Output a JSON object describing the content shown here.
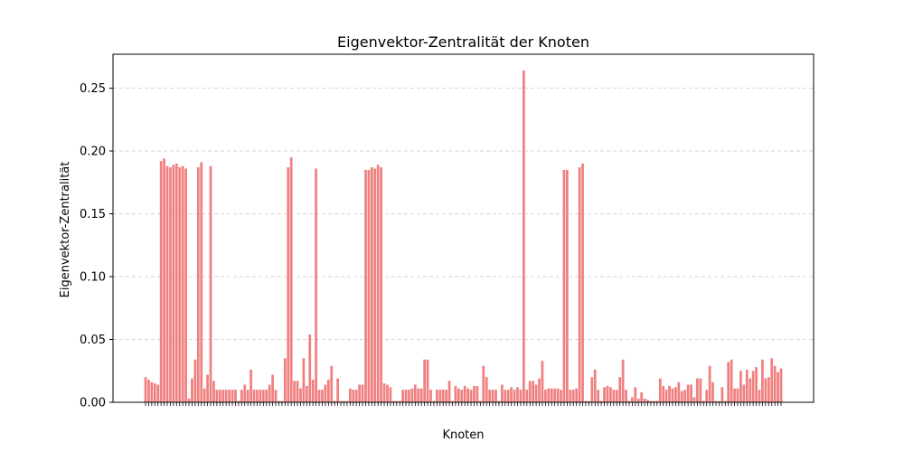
{
  "chart_data": {
    "type": "bar",
    "title": "Eigenvektor-Zentralität der Knoten",
    "xlabel": "Knoten",
    "ylabel": "Eigenvektor-Zentralität",
    "ylim": [
      0,
      0.277
    ],
    "yticks": [
      0.0,
      0.05,
      0.1,
      0.15,
      0.2,
      0.25
    ],
    "ytick_labels": [
      "0.00",
      "0.05",
      "0.10",
      "0.15",
      "0.20",
      "0.25"
    ],
    "grid": "y",
    "bar_color": "#f08080",
    "values": [
      0.02,
      0.018,
      0.016,
      0.015,
      0.014,
      0.192,
      0.194,
      0.188,
      0.187,
      0.189,
      0.19,
      0.187,
      0.188,
      0.186,
      0.003,
      0.019,
      0.034,
      0.187,
      0.191,
      0.011,
      0.022,
      0.188,
      0.017,
      0.01,
      0.01,
      0.01,
      0.01,
      0.01,
      0.01,
      0.01,
      0.001,
      0.01,
      0.014,
      0.01,
      0.026,
      0.01,
      0.01,
      0.01,
      0.01,
      0.01,
      0.014,
      0.022,
      0.01,
      0.001,
      0.001,
      0.035,
      0.187,
      0.195,
      0.017,
      0.017,
      0.011,
      0.035,
      0.013,
      0.054,
      0.018,
      0.186,
      0.01,
      0.01,
      0.014,
      0.018,
      0.029,
      0.001,
      0.019,
      0.001,
      0.001,
      0.001,
      0.011,
      0.01,
      0.01,
      0.014,
      0.014,
      0.185,
      0.185,
      0.187,
      0.186,
      0.189,
      0.187,
      0.015,
      0.014,
      0.012,
      0.001,
      0.001,
      0.001,
      0.01,
      0.01,
      0.01,
      0.011,
      0.014,
      0.011,
      0.011,
      0.034,
      0.034,
      0.01,
      0.001,
      0.01,
      0.01,
      0.01,
      0.01,
      0.017,
      0.001,
      0.013,
      0.011,
      0.01,
      0.013,
      0.011,
      0.01,
      0.013,
      0.013,
      0.001,
      0.029,
      0.02,
      0.01,
      0.01,
      0.01,
      0.001,
      0.014,
      0.01,
      0.01,
      0.012,
      0.01,
      0.012,
      0.01,
      0.264,
      0.01,
      0.017,
      0.017,
      0.014,
      0.019,
      0.033,
      0.01,
      0.011,
      0.011,
      0.011,
      0.011,
      0.01,
      0.185,
      0.185,
      0.01,
      0.01,
      0.011,
      0.187,
      0.19,
      0.001,
      0.001,
      0.02,
      0.026,
      0.01,
      0.001,
      0.012,
      0.013,
      0.012,
      0.01,
      0.01,
      0.02,
      0.034,
      0.01,
      0.001,
      0.004,
      0.012,
      0.003,
      0.008,
      0.003,
      0.002,
      0.001,
      0.001,
      0.001,
      0.019,
      0.013,
      0.01,
      0.013,
      0.011,
      0.012,
      0.016,
      0.009,
      0.01,
      0.014,
      0.014,
      0.004,
      0.019,
      0.019,
      0.001,
      0.01,
      0.029,
      0.016,
      0.001,
      0.001,
      0.012,
      0.001,
      0.032,
      0.034,
      0.011,
      0.011,
      0.025,
      0.014,
      0.026,
      0.019,
      0.025,
      0.028,
      0.01,
      0.034,
      0.019,
      0.02,
      0.035,
      0.029,
      0.024,
      0.027
    ]
  }
}
